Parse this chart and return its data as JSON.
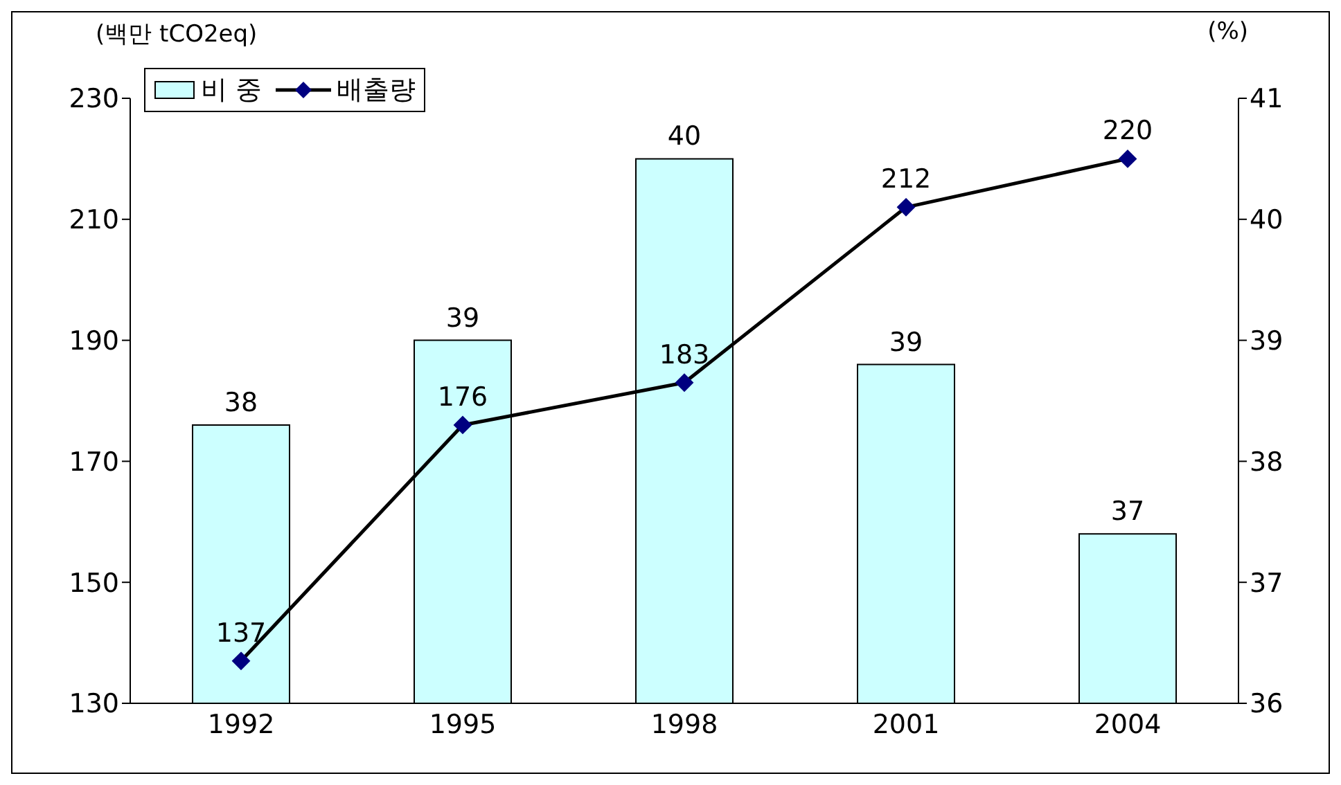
{
  "chart_data": {
    "type": "bar",
    "ylabel": "(백만 tCO2eq)",
    "y2label": "(%)",
    "categories": [
      "1992",
      "1995",
      "1998",
      "2001",
      "2004"
    ],
    "series": [
      {
        "name": "비 중",
        "axis": "y2",
        "color": "#ccffff",
        "values": [
          38.3,
          39.0,
          40.5,
          38.8,
          37.4
        ],
        "value_labels": [
          "38",
          "39",
          "40",
          "39",
          "37"
        ]
      },
      {
        "name": "배출량",
        "type": "line",
        "axis": "y",
        "color": "#000080",
        "values": [
          137,
          176,
          183,
          212,
          220
        ],
        "marker": "diamond",
        "data_labels": true
      }
    ],
    "ylim": [
      130,
      230
    ],
    "yticks": [
      130,
      150,
      170,
      190,
      210,
      230
    ],
    "y2lim": [
      36,
      41
    ],
    "y2ticks": [
      36,
      37,
      38,
      39,
      40,
      41
    ],
    "grid": false,
    "legend": "top left"
  }
}
